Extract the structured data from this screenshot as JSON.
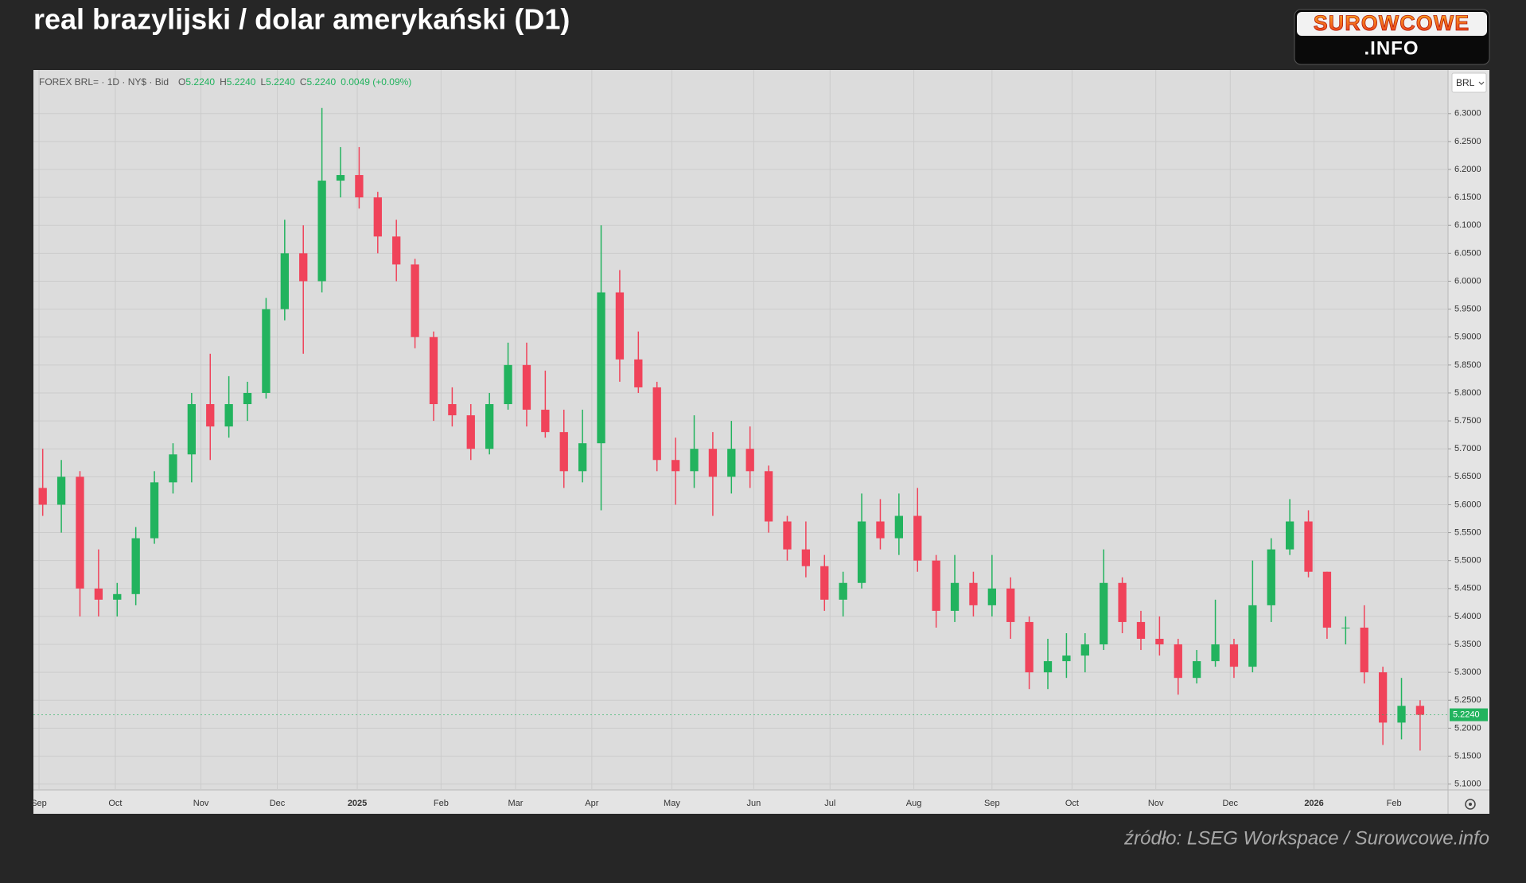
{
  "chart_data": {
    "type": "candlestick",
    "title": "real brazylijski / dolar amerykański (D1)",
    "logo": {
      "top": "SUROWCOWE",
      "bottom": ".INFO"
    },
    "source": "źródło: LSEG Workspace / Surowcowe.info",
    "header": {
      "symbol": "FOREX BRL= · 1D · NY$ · Bid",
      "ohlc": [
        {
          "key": "O",
          "value": "5.2240"
        },
        {
          "key": "H",
          "value": "5.2240"
        },
        {
          "key": "L",
          "value": "5.2240"
        },
        {
          "key": "C",
          "value": "5.2240"
        }
      ],
      "change": "0.0049 (+0.09%)"
    },
    "currency": "BRL",
    "up_color": "#22b35e",
    "down_color": "#f0435a",
    "open": [
      5.63,
      5.6,
      5.65,
      5.45,
      5.43,
      5.44,
      5.54,
      5.64,
      5.69,
      5.78,
      5.74,
      5.78,
      5.8,
      5.95,
      6.05,
      6.0,
      6.18,
      6.19,
      6.15,
      6.08,
      6.03,
      5.9,
      5.78,
      5.76,
      5.7,
      5.78,
      5.85,
      5.77,
      5.73,
      5.66,
      5.71,
      5.98,
      5.86,
      5.81,
      5.68,
      5.66,
      5.7,
      5.65,
      5.7,
      5.66,
      5.57,
      5.52,
      5.49,
      5.43,
      5.46,
      5.57,
      5.54,
      5.58,
      5.5,
      5.41,
      5.46,
      5.42,
      5.45,
      5.39,
      5.3,
      5.32,
      5.33,
      5.35,
      5.46,
      5.39,
      5.36,
      5.35,
      5.29,
      5.32,
      5.35,
      5.31,
      5.42,
      5.52,
      5.57,
      5.48,
      5.38,
      5.38,
      5.3,
      5.21,
      5.24
    ],
    "high": [
      5.7,
      5.68,
      5.66,
      5.52,
      5.46,
      5.56,
      5.66,
      5.71,
      5.8,
      5.87,
      5.83,
      5.82,
      5.97,
      6.11,
      6.1,
      6.31,
      6.24,
      6.24,
      6.16,
      6.11,
      6.04,
      5.91,
      5.81,
      5.78,
      5.8,
      5.89,
      5.89,
      5.84,
      5.77,
      5.77,
      6.1,
      6.02,
      5.91,
      5.82,
      5.72,
      5.76,
      5.73,
      5.75,
      5.74,
      5.67,
      5.58,
      5.57,
      5.51,
      5.48,
      5.62,
      5.61,
      5.62,
      5.63,
      5.51,
      5.51,
      5.48,
      5.51,
      5.47,
      5.4,
      5.36,
      5.37,
      5.37,
      5.52,
      5.47,
      5.41,
      5.4,
      5.36,
      5.34,
      5.43,
      5.36,
      5.5,
      5.54,
      5.61,
      5.59,
      5.48,
      5.4,
      5.42,
      5.31,
      5.29,
      5.25
    ],
    "low": [
      5.58,
      5.55,
      5.4,
      5.4,
      5.4,
      5.42,
      5.53,
      5.62,
      5.64,
      5.68,
      5.72,
      5.75,
      5.79,
      5.93,
      5.87,
      5.98,
      6.15,
      6.13,
      6.05,
      6.0,
      5.88,
      5.75,
      5.74,
      5.68,
      5.69,
      5.77,
      5.74,
      5.72,
      5.63,
      5.64,
      5.59,
      5.82,
      5.8,
      5.66,
      5.6,
      5.63,
      5.58,
      5.62,
      5.63,
      5.55,
      5.5,
      5.47,
      5.41,
      5.4,
      5.45,
      5.52,
      5.51,
      5.48,
      5.38,
      5.39,
      5.4,
      5.4,
      5.36,
      5.27,
      5.27,
      5.29,
      5.3,
      5.34,
      5.37,
      5.34,
      5.33,
      5.26,
      5.28,
      5.31,
      5.29,
      5.3,
      5.39,
      5.51,
      5.47,
      5.36,
      5.35,
      5.28,
      5.17,
      5.18,
      5.16
    ],
    "close": [
      5.6,
      5.65,
      5.45,
      5.43,
      5.44,
      5.54,
      5.64,
      5.69,
      5.78,
      5.74,
      5.78,
      5.8,
      5.95,
      6.05,
      6.0,
      6.18,
      6.19,
      6.15,
      6.08,
      6.03,
      5.9,
      5.78,
      5.76,
      5.7,
      5.78,
      5.85,
      5.77,
      5.73,
      5.66,
      5.71,
      5.98,
      5.86,
      5.81,
      5.68,
      5.66,
      5.7,
      5.65,
      5.7,
      5.66,
      5.57,
      5.52,
      5.49,
      5.43,
      5.46,
      5.57,
      5.54,
      5.58,
      5.5,
      5.41,
      5.46,
      5.42,
      5.45,
      5.39,
      5.3,
      5.32,
      5.33,
      5.35,
      5.46,
      5.39,
      5.36,
      5.35,
      5.29,
      5.32,
      5.35,
      5.31,
      5.42,
      5.52,
      5.57,
      5.48,
      5.38,
      5.38,
      5.3,
      5.21,
      5.24,
      5.224
    ],
    "last_price": {
      "value": 5.224,
      "label": "5.2240"
    },
    "xlim": [
      0,
      76
    ],
    "xticks": [
      {
        "value": 0.3,
        "label": "Sep"
      },
      {
        "value": 4.4,
        "label": "Oct"
      },
      {
        "value": 9.0,
        "label": "Nov"
      },
      {
        "value": 13.1,
        "label": "Dec"
      },
      {
        "value": 17.4,
        "label": "2025"
      },
      {
        "value": 21.9,
        "label": "Feb"
      },
      {
        "value": 25.9,
        "label": "Mar"
      },
      {
        "value": 30.0,
        "label": "Apr"
      },
      {
        "value": 34.3,
        "label": "May"
      },
      {
        "value": 38.7,
        "label": "Jun"
      },
      {
        "value": 42.8,
        "label": "Jul"
      },
      {
        "value": 47.3,
        "label": "Aug"
      },
      {
        "value": 51.5,
        "label": "Sep"
      },
      {
        "value": 55.8,
        "label": "Oct"
      },
      {
        "value": 60.3,
        "label": "Nov"
      },
      {
        "value": 64.3,
        "label": "Dec"
      },
      {
        "value": 68.8,
        "label": "2026"
      },
      {
        "value": 73.1,
        "label": "Feb"
      }
    ],
    "ylim": [
      5.0895,
      6.378
    ],
    "yticks": [
      {
        "value": 5.1,
        "label": "5.1000"
      },
      {
        "value": 5.15,
        "label": "5.1500"
      },
      {
        "value": 5.2,
        "label": "5.2000"
      },
      {
        "value": 5.25,
        "label": "5.2500"
      },
      {
        "value": 5.3,
        "label": "5.3000"
      },
      {
        "value": 5.35,
        "label": "5.3500"
      },
      {
        "value": 5.4,
        "label": "5.4000"
      },
      {
        "value": 5.45,
        "label": "5.4500"
      },
      {
        "value": 5.5,
        "label": "5.5000"
      },
      {
        "value": 5.55,
        "label": "5.5500"
      },
      {
        "value": 5.6,
        "label": "5.6000"
      },
      {
        "value": 5.65,
        "label": "5.6500"
      },
      {
        "value": 5.7,
        "label": "5.7000"
      },
      {
        "value": 5.75,
        "label": "5.7500"
      },
      {
        "value": 5.8,
        "label": "5.8000"
      },
      {
        "value": 5.85,
        "label": "5.8500"
      },
      {
        "value": 5.9,
        "label": "5.9000"
      },
      {
        "value": 5.95,
        "label": "5.9500"
      },
      {
        "value": 6.0,
        "label": "6.0000"
      },
      {
        "value": 6.05,
        "label": "6.0500"
      },
      {
        "value": 6.1,
        "label": "6.1000"
      },
      {
        "value": 6.15,
        "label": "6.1500"
      },
      {
        "value": 6.2,
        "label": "6.2000"
      },
      {
        "value": 6.25,
        "label": "6.2500"
      },
      {
        "value": 6.3,
        "label": "6.3000"
      }
    ],
    "grid": true
  }
}
